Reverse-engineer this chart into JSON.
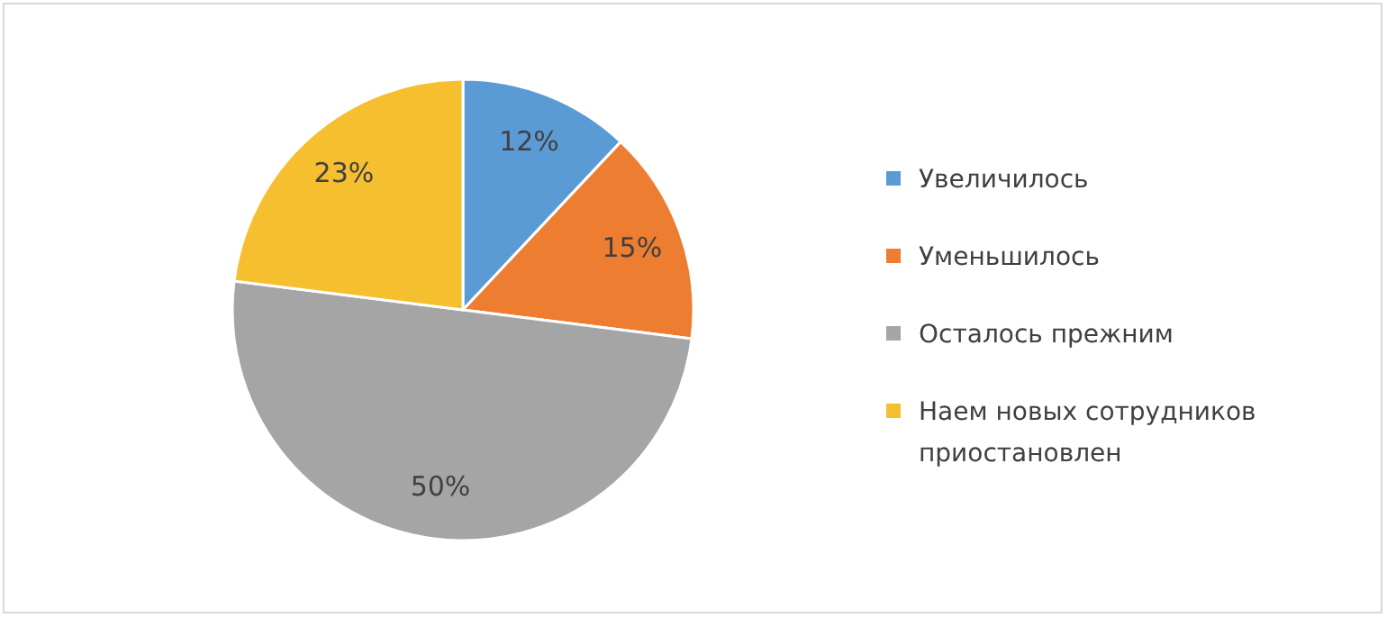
{
  "chart_data": {
    "type": "pie",
    "categories": [
      "Увеличилось",
      "Уменьшилось",
      "Осталось прежним",
      "Наем новых сотрудников приостановлен"
    ],
    "values": [
      12,
      15,
      50,
      23
    ],
    "colors": [
      "#5b9bd5",
      "#ed7d31",
      "#a5a5a5",
      "#f5bf30"
    ],
    "value_labels": [
      "12%",
      "15%",
      "50%",
      "23%"
    ],
    "legend": "right"
  }
}
